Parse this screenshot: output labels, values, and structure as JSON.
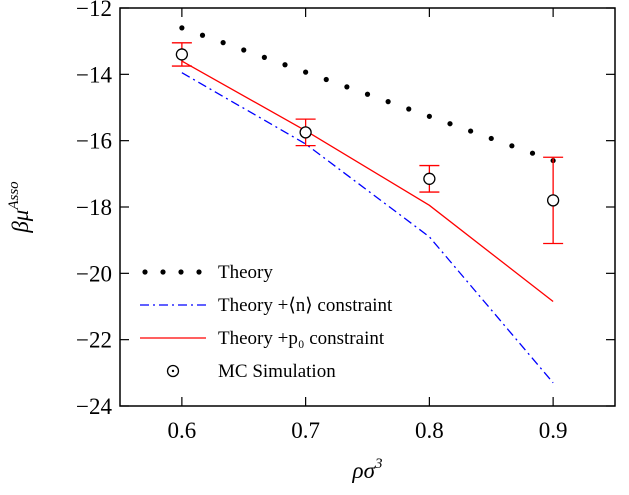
{
  "chart_data": {
    "type": "line",
    "title": "",
    "xlabel": "ρσ",
    "xlabel_sup": "3",
    "ylabel": "βμ",
    "ylabel_sup": "Asso",
    "xlim": [
      0.55,
      0.95
    ],
    "ylim": [
      -24,
      -12
    ],
    "xticks": [
      0.6,
      0.7,
      0.8,
      0.9
    ],
    "xtick_labels": [
      "0.6",
      "0.7",
      "0.8",
      "0.9"
    ],
    "yticks": [
      -24,
      -22,
      -20,
      -18,
      -16,
      -14,
      -12
    ],
    "ytick_labels": [
      "−24",
      "−22",
      "−20",
      "−18",
      "−16",
      "−14",
      "−12"
    ],
    "grid": false,
    "legend_position": "bottom-left",
    "series": [
      {
        "name": "Theory",
        "style": "dotted",
        "color": "#000000",
        "x": [
          0.6,
          0.9
        ],
        "y": [
          -12.6,
          -16.6
        ]
      },
      {
        "name": "Theory +⟨n⟩ constraint",
        "style": "dash-dot",
        "color": "#0000ff",
        "x": [
          0.6,
          0.7,
          0.8,
          0.9
        ],
        "y": [
          -13.95,
          -16.1,
          -18.9,
          -23.3
        ]
      },
      {
        "name": "Theory +p₀ constraint",
        "style": "solid",
        "color": "#ff0000",
        "x": [
          0.6,
          0.7,
          0.8,
          0.9
        ],
        "y": [
          -13.6,
          -15.7,
          -17.95,
          -20.85
        ]
      },
      {
        "name": "MC Simulation",
        "style": "markers-errorbars",
        "color": "#000000",
        "error_color": "#ff0000",
        "x": [
          0.6,
          0.7,
          0.8,
          0.9
        ],
        "y": [
          -13.4,
          -15.75,
          -17.15,
          -17.8
        ],
        "err_low": [
          0.35,
          0.4,
          0.4,
          1.3
        ],
        "err_high": [
          0.35,
          0.4,
          0.4,
          1.3
        ]
      }
    ]
  }
}
